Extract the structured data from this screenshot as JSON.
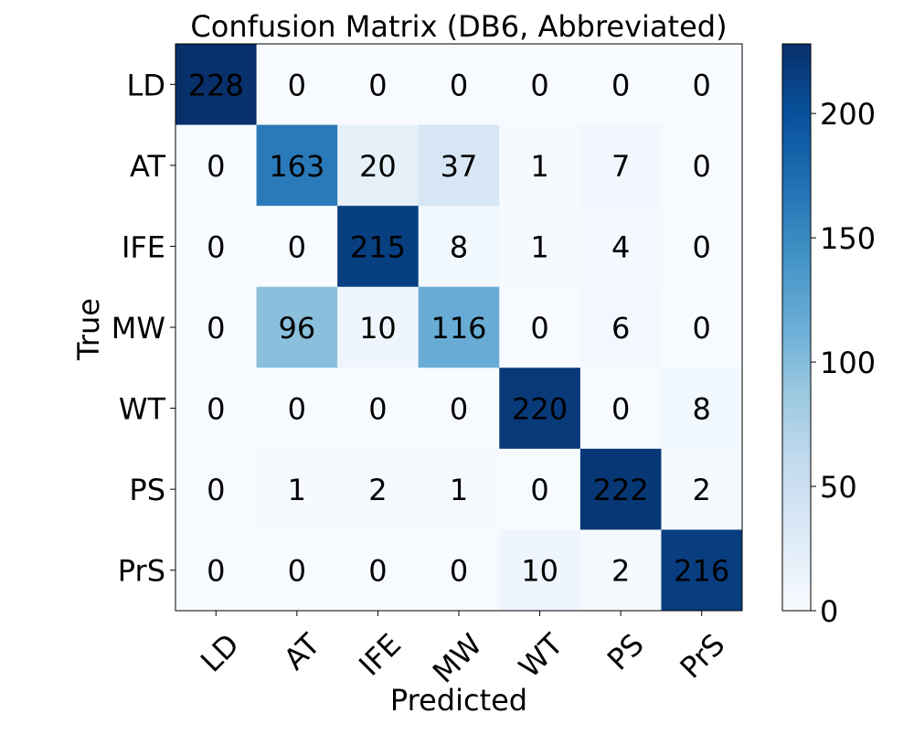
{
  "chart_data": {
    "type": "heatmap",
    "title": "Confusion Matrix (DB6, Abbreviated)",
    "xlabel": "Predicted",
    "ylabel": "True",
    "x_categories": [
      "LD",
      "AT",
      "IFE",
      "MW",
      "WT",
      "PS",
      "PrS"
    ],
    "y_categories": [
      "LD",
      "AT",
      "IFE",
      "MW",
      "WT",
      "PS",
      "PrS"
    ],
    "values": [
      [
        228,
        0,
        0,
        0,
        0,
        0,
        0
      ],
      [
        0,
        163,
        20,
        37,
        1,
        7,
        0
      ],
      [
        0,
        0,
        215,
        8,
        1,
        4,
        0
      ],
      [
        0,
        96,
        10,
        116,
        0,
        6,
        0
      ],
      [
        0,
        0,
        0,
        0,
        220,
        0,
        8
      ],
      [
        0,
        1,
        2,
        1,
        0,
        222,
        2
      ],
      [
        0,
        0,
        0,
        0,
        10,
        2,
        216
      ]
    ],
    "colormap": "Blues",
    "colormap_stops": [
      "#f7fbff",
      "#deebf7",
      "#c6dbef",
      "#9ecae1",
      "#6baed6",
      "#4292c6",
      "#2171b5",
      "#08519c",
      "#08306b"
    ],
    "color_range": [
      0,
      228
    ],
    "colorbar_ticks": [
      0,
      50,
      100,
      150,
      200
    ],
    "x_tick_rotation_deg": 45,
    "grid": false
  }
}
